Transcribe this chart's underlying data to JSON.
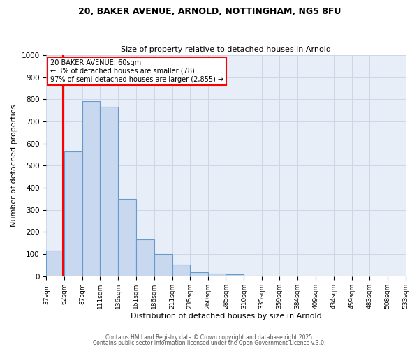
{
  "title1": "20, BAKER AVENUE, ARNOLD, NOTTINGHAM, NG5 8FU",
  "title2": "Size of property relative to detached houses in Arnold",
  "xlabel": "Distribution of detached houses by size in Arnold",
  "ylabel": "Number of detached properties",
  "bin_edges": [
    37,
    62,
    87,
    111,
    136,
    161,
    186,
    211,
    235,
    260,
    285,
    310,
    335,
    359,
    384,
    409,
    434,
    459,
    483,
    508,
    533
  ],
  "bar_heights": [
    115,
    565,
    793,
    768,
    350,
    168,
    99,
    53,
    20,
    13,
    10,
    2,
    1,
    1,
    0,
    1,
    0,
    0,
    0,
    0
  ],
  "bar_color": "#c8d8ef",
  "bar_edge_color": "#6699cc",
  "tick_labels": [
    "37sqm",
    "62sqm",
    "87sqm",
    "111sqm",
    "136sqm",
    "161sqm",
    "186sqm",
    "211sqm",
    "235sqm",
    "260sqm",
    "285sqm",
    "310sqm",
    "335sqm",
    "359sqm",
    "384sqm",
    "409sqm",
    "434sqm",
    "459sqm",
    "483sqm",
    "508sqm",
    "533sqm"
  ],
  "ylim": [
    0,
    1000
  ],
  "yticks": [
    0,
    100,
    200,
    300,
    400,
    500,
    600,
    700,
    800,
    900,
    1000
  ],
  "property_line_x": 60,
  "annotation_line1": "20 BAKER AVENUE: 60sqm",
  "annotation_line2": "← 3% of detached houses are smaller (78)",
  "annotation_line3": "97% of semi-detached houses are larger (2,855) →",
  "grid_color": "#ccd8e8",
  "plot_bg_color": "#e8eef8",
  "fig_bg_color": "#ffffff",
  "footer1": "Contains HM Land Registry data © Crown copyright and database right 2025.",
  "footer2": "Contains public sector information licensed under the Open Government Licence v.3.0."
}
